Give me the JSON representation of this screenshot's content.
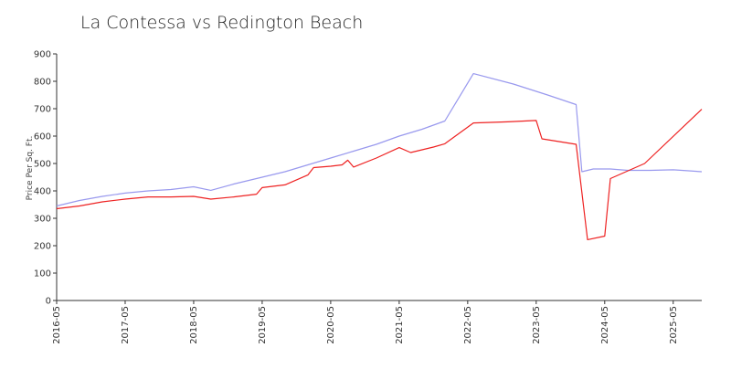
{
  "chart_data": {
    "type": "line",
    "title": "La Contessa vs Redington Beach",
    "xlabel": "",
    "ylabel": "Price Per Sq. Ft.",
    "ylim": [
      0,
      900
    ],
    "yticks": [
      0,
      100,
      200,
      300,
      400,
      500,
      600,
      700,
      800,
      900
    ],
    "xlim": [
      "2016-05",
      "2025-10"
    ],
    "xticks": [
      "2016-05",
      "2017-05",
      "2018-05",
      "2019-05",
      "2020-05",
      "2021-05",
      "2022-05",
      "2023-05",
      "2024-05",
      "2025-05"
    ],
    "grid": false,
    "legend": "none",
    "series": [
      {
        "color": "#9999ee",
        "points": [
          [
            "2016-05",
            345
          ],
          [
            "2016-09",
            365
          ],
          [
            "2017-01",
            380
          ],
          [
            "2017-05",
            392
          ],
          [
            "2017-09",
            400
          ],
          [
            "2018-01",
            405
          ],
          [
            "2018-05",
            415
          ],
          [
            "2018-08",
            402
          ],
          [
            "2018-12",
            425
          ],
          [
            "2019-05",
            450
          ],
          [
            "2019-09",
            470
          ],
          [
            "2020-01",
            495
          ],
          [
            "2020-05",
            520
          ],
          [
            "2020-09",
            545
          ],
          [
            "2021-01",
            570
          ],
          [
            "2021-05",
            600
          ],
          [
            "2021-09",
            625
          ],
          [
            "2022-01",
            655
          ],
          [
            "2022-06",
            828
          ],
          [
            "2023-01",
            790
          ],
          [
            "2023-07",
            750
          ],
          [
            "2023-12",
            715
          ],
          [
            "2024-01",
            470
          ],
          [
            "2024-03",
            480
          ],
          [
            "2024-06",
            480
          ],
          [
            "2024-09",
            475
          ],
          [
            "2025-01",
            475
          ],
          [
            "2025-05",
            477
          ],
          [
            "2025-10",
            470
          ]
        ]
      },
      {
        "color": "#ee2222",
        "points": [
          [
            "2016-05",
            335
          ],
          [
            "2016-09",
            345
          ],
          [
            "2017-01",
            360
          ],
          [
            "2017-05",
            370
          ],
          [
            "2017-09",
            378
          ],
          [
            "2018-01",
            378
          ],
          [
            "2018-05",
            380
          ],
          [
            "2018-08",
            370
          ],
          [
            "2018-12",
            378
          ],
          [
            "2019-04",
            388
          ],
          [
            "2019-05",
            412
          ],
          [
            "2019-09",
            422
          ],
          [
            "2020-01",
            458
          ],
          [
            "2020-02",
            485
          ],
          [
            "2020-05",
            490
          ],
          [
            "2020-07",
            495
          ],
          [
            "2020-08",
            512
          ],
          [
            "2020-09",
            487
          ],
          [
            "2021-01",
            520
          ],
          [
            "2021-05",
            558
          ],
          [
            "2021-07",
            540
          ],
          [
            "2021-11",
            560
          ],
          [
            "2022-01",
            572
          ],
          [
            "2022-06",
            648
          ],
          [
            "2022-12",
            652
          ],
          [
            "2023-05",
            657
          ],
          [
            "2023-06",
            590
          ],
          [
            "2023-12",
            570
          ],
          [
            "2024-02",
            222
          ],
          [
            "2024-05",
            235
          ],
          [
            "2024-06",
            445
          ],
          [
            "2024-12",
            500
          ],
          [
            "2025-10",
            698
          ]
        ]
      }
    ]
  }
}
